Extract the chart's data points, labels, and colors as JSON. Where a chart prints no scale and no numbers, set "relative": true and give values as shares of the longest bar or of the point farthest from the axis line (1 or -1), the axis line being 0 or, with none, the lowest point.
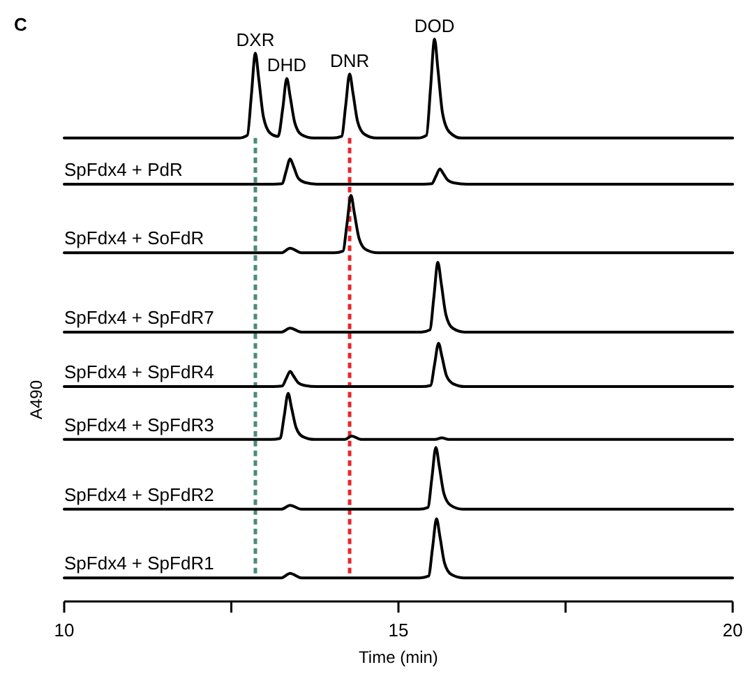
{
  "chart_data": {
    "type": "line",
    "relative": true,
    "xlabel": "Time (min)",
    "ylabel": "A490",
    "xlim": [
      10,
      20
    ],
    "xticks": [
      10,
      {
        "value": 12.5,
        "label": null
      },
      15,
      {
        "value": 17.5,
        "label": null
      },
      20
    ],
    "tick_labels": "x",
    "grid": false,
    "marker": "none",
    "line_style": "solid",
    "annotations": [
      "C",
      {
        "text": "DXR",
        "x": 12.86,
        "y": 0.975
      },
      {
        "text": "DHD",
        "x": 13.33,
        "y": 0.93
      },
      {
        "text": "DNR",
        "x": 14.27,
        "y": 0.938
      },
      {
        "text": "DOD",
        "x": 15.54,
        "y": 1
      }
    ],
    "ref_lines": [
      {
        "axis": "x",
        "value": 12.86,
        "color": "#4a8a7a",
        "line_style": "dashed"
      },
      {
        "axis": "x",
        "value": 14.27,
        "color": "#e8262a",
        "line_style": "dashed"
      }
    ],
    "series": [
      {
        "color": "#000000",
        "x": [
          10,
          12.61,
          12.74,
          12.8,
          12.86,
          12.91,
          12.98,
          13.08,
          13.2,
          13.27,
          13.33,
          13.38,
          13.45,
          13.55,
          13.73,
          14.02,
          14.15,
          14.21,
          14.27,
          14.32,
          14.39,
          14.49,
          14.67,
          15.29,
          15.42,
          15.48,
          15.54,
          15.59,
          15.66,
          15.76,
          15.94,
          20
        ],
        "values": [
          0.824,
          0.824,
          0.829,
          0.9,
          0.975,
          0.93,
          0.862,
          0.833,
          0.827,
          0.877,
          0.93,
          0.898,
          0.851,
          0.83,
          0.824,
          0.824,
          0.827,
          0.881,
          0.938,
          0.904,
          0.853,
          0.831,
          0.824,
          0.824,
          0.829,
          0.912,
          1,
          0.947,
          0.868,
          0.835,
          0.824,
          0.824
        ]
      },
      {
        "name": "SpFdx4 + PdR",
        "color": "#000000",
        "x": [
          10,
          13.13,
          13.26,
          13.32,
          13.38,
          13.43,
          13.5,
          13.6,
          13.78,
          15.37,
          15.5,
          15.56,
          15.62,
          15.67,
          15.74,
          15.84,
          16.02,
          20
        ],
        "values": [
          0.742,
          0.742,
          0.743,
          0.765,
          0.787,
          0.774,
          0.753,
          0.745,
          0.742,
          0.742,
          0.743,
          0.756,
          0.769,
          0.761,
          0.749,
          0.744,
          0.742,
          0.742
        ]
      },
      {
        "name": "SpFdx4 + SoFdR",
        "color": "#000000",
        "x": [
          10,
          13.25,
          13.38,
          13.55,
          14.04,
          14.17,
          14.23,
          14.29,
          14.34,
          14.41,
          14.51,
          14.69,
          20
        ],
        "values": [
          0.62,
          0.62,
          0.628,
          0.62,
          0.62,
          0.623,
          0.671,
          0.722,
          0.691,
          0.646,
          0.626,
          0.62,
          0.62
        ]
      },
      {
        "name": "SpFdx4 + SpFdR7",
        "color": "#000000",
        "x": [
          10,
          13.25,
          13.38,
          13.55,
          15.34,
          15.47,
          15.53,
          15.59,
          15.64,
          15.71,
          15.81,
          15.99,
          20
        ],
        "values": [
          0.479,
          0.479,
          0.486,
          0.479,
          0.479,
          0.483,
          0.541,
          0.603,
          0.566,
          0.51,
          0.486,
          0.479,
          0.479
        ]
      },
      {
        "name": "SpFdx4 + SpFdR4",
        "color": "#000000",
        "x": [
          10,
          13.13,
          13.26,
          13.32,
          13.38,
          13.43,
          13.5,
          13.6,
          13.78,
          15.35,
          15.48,
          15.54,
          15.6,
          15.65,
          15.72,
          15.82,
          16,
          20
        ],
        "values": [
          0.382,
          0.382,
          0.383,
          0.396,
          0.409,
          0.401,
          0.389,
          0.384,
          0.382,
          0.382,
          0.384,
          0.421,
          0.459,
          0.436,
          0.401,
          0.387,
          0.382,
          0.382
        ]
      },
      {
        "name": "SpFdx4 + SpFdR3",
        "color": "#000000",
        "x": [
          10,
          13.1,
          13.23,
          13.29,
          13.35,
          13.4,
          13.47,
          13.57,
          13.75,
          14.2,
          14.3,
          14.45,
          15.55,
          15.65,
          15.75,
          20
        ],
        "values": [
          0.288,
          0.288,
          0.29,
          0.329,
          0.37,
          0.345,
          0.309,
          0.293,
          0.288,
          0.288,
          0.294,
          0.288,
          0.288,
          0.291,
          0.288,
          0.288
        ]
      },
      {
        "name": "SpFdx4 + SpFdR2",
        "color": "#000000",
        "x": [
          10,
          13.25,
          13.38,
          13.55,
          15.31,
          15.44,
          15.5,
          15.56,
          15.61,
          15.68,
          15.78,
          15.96,
          20
        ],
        "values": [
          0.164,
          0.164,
          0.171,
          0.164,
          0.164,
          0.167,
          0.219,
          0.274,
          0.241,
          0.192,
          0.171,
          0.164,
          0.164
        ]
      },
      {
        "name": "SpFdx4 + SpFdR1",
        "color": "#000000",
        "x": [
          10,
          13.25,
          13.38,
          13.55,
          15.32,
          15.45,
          15.51,
          15.57,
          15.62,
          15.69,
          15.79,
          15.97,
          20
        ],
        "values": [
          0.042,
          0.042,
          0.05,
          0.042,
          0.042,
          0.045,
          0.095,
          0.147,
          0.116,
          0.068,
          0.048,
          0.042,
          0.042
        ]
      }
    ]
  }
}
